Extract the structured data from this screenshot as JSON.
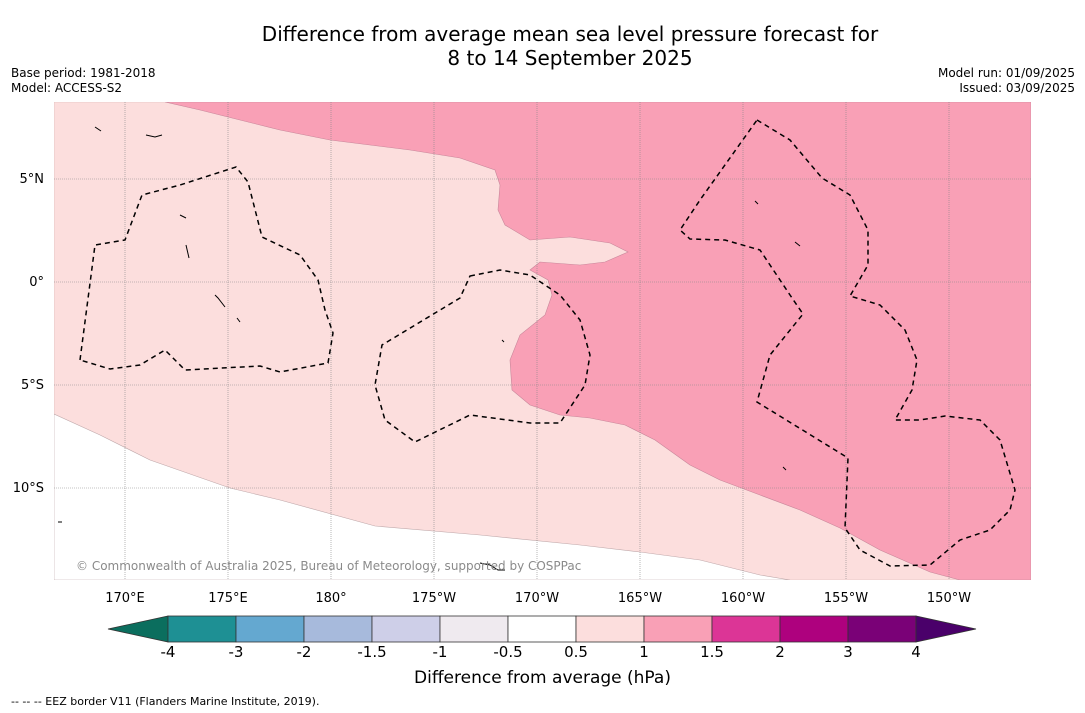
{
  "title": {
    "line1": "Difference from average mean sea level pressure forecast for",
    "line2": "8 to 14 September 2025"
  },
  "meta": {
    "base_period": "Base period: 1981-2018",
    "model": "Model: ACCESS-S2",
    "model_run": "Model run: 01/09/2025",
    "issued": "Issued: 03/09/2025"
  },
  "map": {
    "lat_labels": [
      "5°N",
      "0°",
      "5°S",
      "10°S"
    ],
    "lon_labels": [
      "170°E",
      "175°E",
      "180°",
      "175°W",
      "170°W",
      "165°W",
      "160°W",
      "155°W",
      "150°W"
    ],
    "copyright": "© Commonwealth of Australia 2025, Bureau of Meteorology, supported by COSPPac",
    "colors": {
      "band_0_5_to_1": "#fcdedd",
      "band_1_to_1_5": "#f9a0b6",
      "land": "#ffffff"
    }
  },
  "colorbar": {
    "title": "Difference from average (hPa)",
    "tick_labels": [
      "-4",
      "-3",
      "-2",
      "-1.5",
      "-1",
      "-0.5",
      "0.5",
      "1",
      "1.5",
      "2",
      "3",
      "4"
    ],
    "colors": [
      "#0b6e5e",
      "#1e9094",
      "#64a8d0",
      "#a7badc",
      "#cecfe8",
      "#efeaef",
      "#ffffff",
      "#fcdedd",
      "#f9a0b6",
      "#dc3596",
      "#ae017e",
      "#7a0177",
      "#4a006a"
    ]
  },
  "footnote": "--  --  -- EEZ border V11 (Flanders Marine Institute, 2019)."
}
